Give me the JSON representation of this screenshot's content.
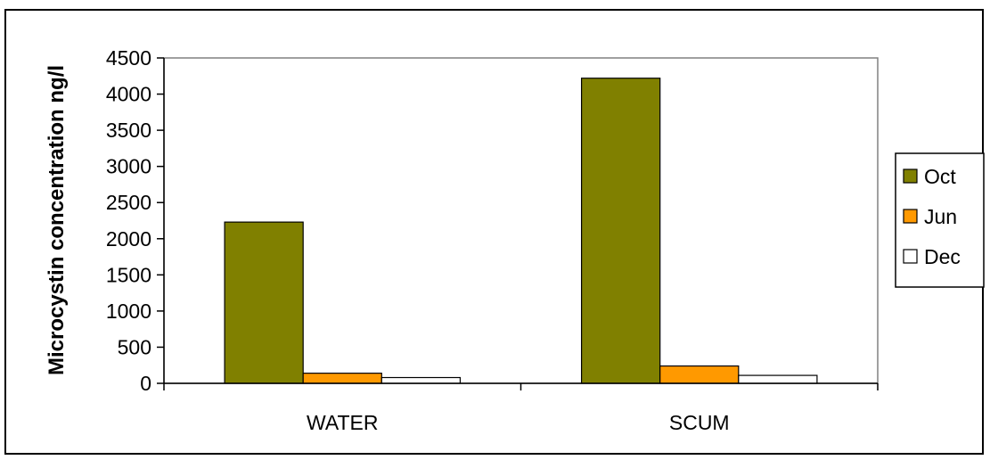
{
  "chart_data": {
    "type": "bar",
    "title": "",
    "xlabel": "",
    "ylabel": "Microcystin concentration ng/l",
    "categories": [
      "WATER",
      "SCUM"
    ],
    "ylim": [
      0,
      4500
    ],
    "yticks": [
      0,
      500,
      1000,
      1500,
      2000,
      2500,
      3000,
      3500,
      4000,
      4500
    ],
    "grid": false,
    "legend_position": "right",
    "series": [
      {
        "name": "Oct",
        "color": "#808000",
        "values": [
          2230,
          4220
        ]
      },
      {
        "name": "Jun",
        "color": "#ff9900",
        "values": [
          140,
          240
        ]
      },
      {
        "name": "Dec",
        "color": "#ffffff",
        "values": [
          80,
          110
        ]
      }
    ]
  }
}
